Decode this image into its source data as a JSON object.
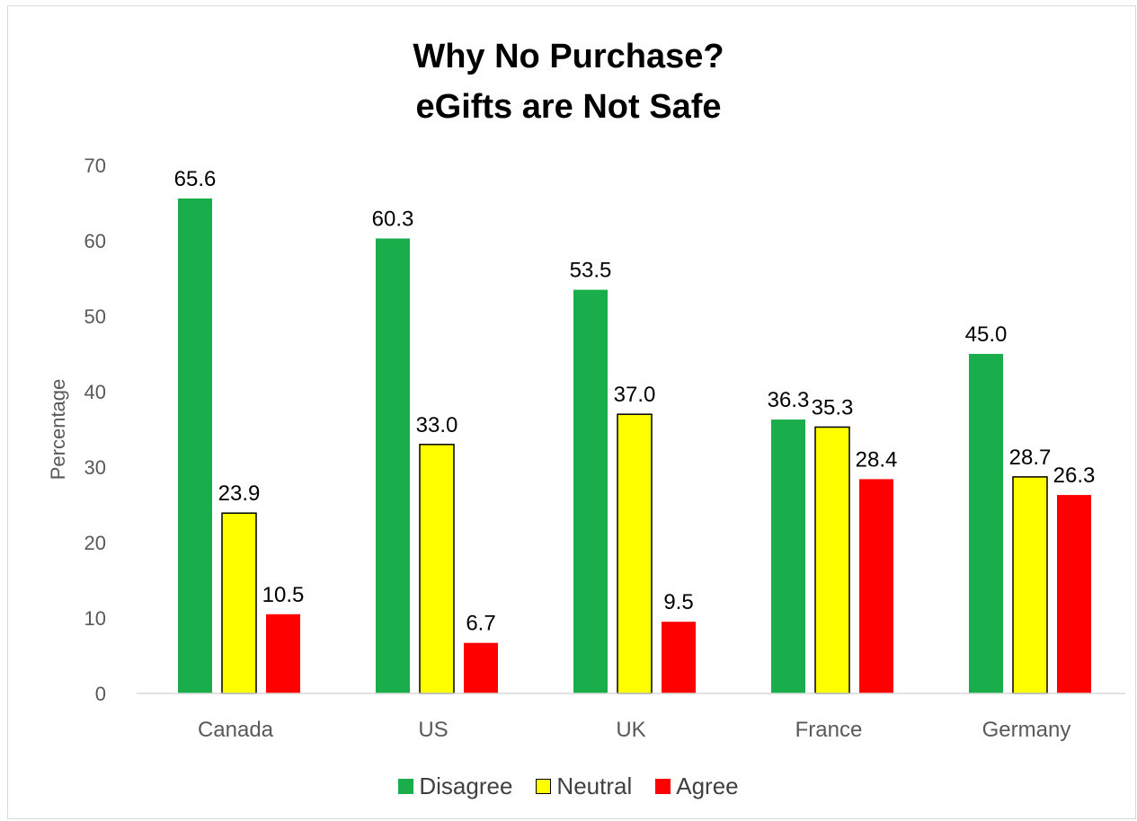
{
  "chart_data": {
    "type": "bar",
    "title": "Why No Purchase?",
    "subtitle": "eGifts are Not Safe",
    "xlabel": "",
    "ylabel": "Percentage",
    "ylim": [
      0,
      70
    ],
    "yticks": [
      0,
      10,
      20,
      30,
      40,
      50,
      60,
      70
    ],
    "categories": [
      "Canada",
      "US",
      "UK",
      "France",
      "Germany"
    ],
    "series": [
      {
        "name": "Disagree",
        "color": "#1aad4c",
        "values": [
          65.6,
          60.3,
          53.5,
          36.3,
          45.0
        ],
        "labels": [
          "65.6",
          "60.3",
          "53.5",
          "36.3",
          "45.0"
        ]
      },
      {
        "name": "Neutral",
        "color": "#ffff00",
        "values": [
          23.9,
          33.0,
          37.0,
          35.3,
          28.7
        ],
        "labels": [
          "23.9",
          "33.0",
          "37.0",
          "35.3",
          "28.7"
        ]
      },
      {
        "name": "Agree",
        "color": "#ff0000",
        "values": [
          10.5,
          6.7,
          9.5,
          28.4,
          26.3
        ],
        "labels": [
          "10.5",
          "6.7",
          "9.5",
          "28.4",
          "26.3"
        ]
      }
    ],
    "grid": false,
    "legend_position": "bottom"
  }
}
